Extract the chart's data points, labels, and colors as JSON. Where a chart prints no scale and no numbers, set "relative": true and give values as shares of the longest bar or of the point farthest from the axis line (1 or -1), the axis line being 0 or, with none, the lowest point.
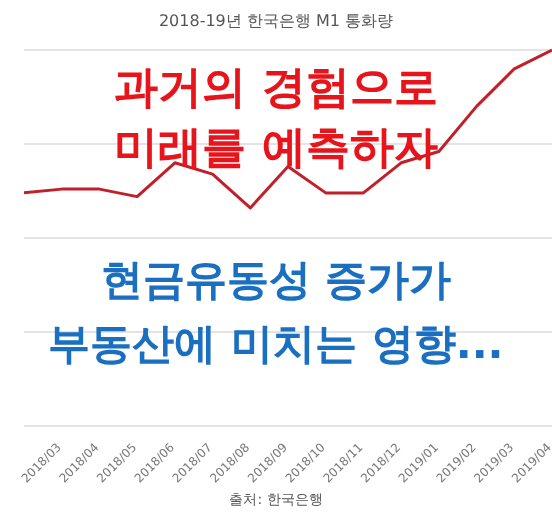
{
  "chart_data": {
    "type": "line",
    "title": "2018-19년 한국은행 M1 통화량",
    "relative": true,
    "grid": "y",
    "marker": "none",
    "categories": [
      null,
      "2018/03",
      "2018/04",
      "2018/05",
      "2018/06",
      "2018/07",
      "2018/08",
      "2018/09",
      "2018/10",
      "2018/11",
      "2018/12",
      "2019/01",
      "2019/02",
      "2019/03",
      "2019/04"
    ],
    "series": [
      {
        "color": "#c0202a",
        "values": [
          0.62,
          0.63,
          0.63,
          0.61,
          0.7,
          0.67,
          0.58,
          0.69,
          0.62,
          0.62,
          0.7,
          0.73,
          0.85,
          0.95,
          1
        ]
      }
    ],
    "annotations": [
      "과거의 경험으로",
      "미래를 예측하자",
      "현금유동성 증가가",
      "부동산에 미치는 영향...",
      "출처: 한국은행"
    ]
  }
}
